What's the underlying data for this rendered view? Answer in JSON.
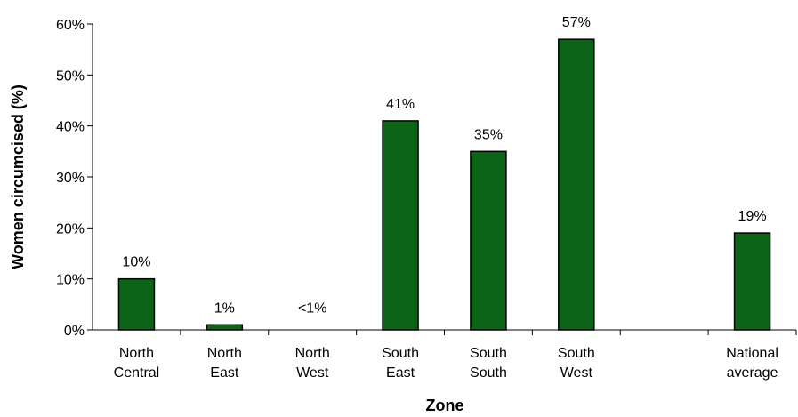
{
  "chart_data": {
    "type": "bar",
    "title": "",
    "xlabel": "Zone",
    "ylabel": "Women circumcised (%)",
    "ylim": [
      0,
      60
    ],
    "yticks": [
      "0%",
      "10%",
      "20%",
      "30%",
      "40%",
      "50%",
      "60%"
    ],
    "grid": false,
    "legend": "none",
    "bar_color": "#0b6417",
    "categories": [
      {
        "lines": [
          "North",
          "Central"
        ]
      },
      {
        "lines": [
          "North",
          "East"
        ]
      },
      {
        "lines": [
          "North",
          "West"
        ]
      },
      {
        "lines": [
          "South",
          "East"
        ]
      },
      {
        "lines": [
          "South",
          "South"
        ]
      },
      {
        "lines": [
          "South",
          "West"
        ]
      },
      {
        "lines": [
          "",
          ""
        ]
      },
      {
        "lines": [
          "National",
          "average"
        ]
      }
    ],
    "values": [
      10,
      1,
      0.1,
      41,
      35,
      57,
      null,
      19
    ],
    "data_labels": [
      "10%",
      "1%",
      "<1%",
      "41%",
      "35%",
      "57%",
      "",
      "19%"
    ]
  }
}
